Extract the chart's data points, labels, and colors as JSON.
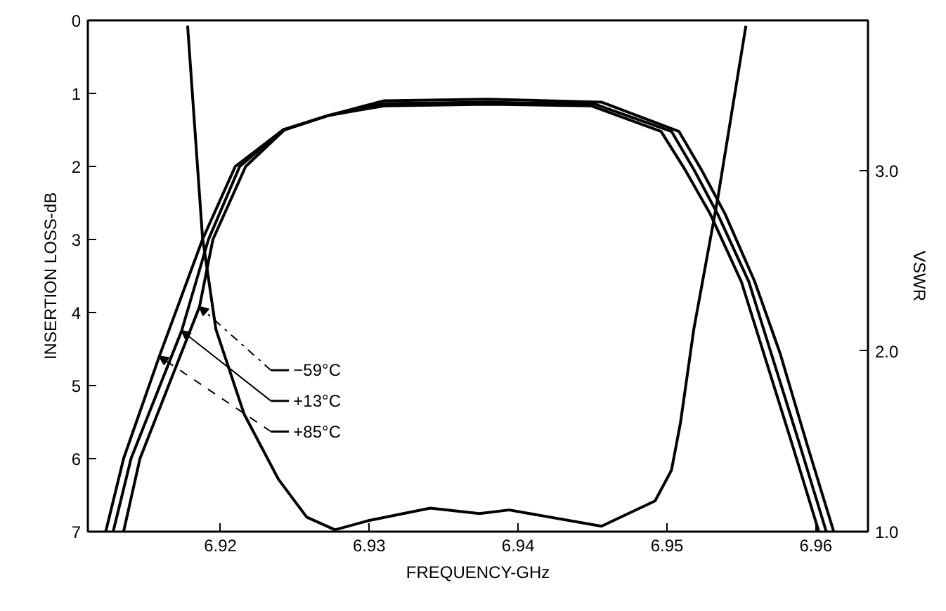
{
  "chart_data": {
    "type": "line",
    "xlabel": "FREQUENCY-GHz",
    "ylabel": "INSERTION LOSS-dB",
    "y2label": "VSWR",
    "xlim": [
      6.9111,
      6.9635
    ],
    "xticks": [
      6.92,
      6.93,
      6.94,
      6.95,
      6.96
    ],
    "ylim": [
      7,
      0
    ],
    "yticks": [
      0,
      1,
      2,
      3,
      4,
      5,
      6,
      7
    ],
    "y2lim": [
      1.0,
      3.83
    ],
    "y2ticks": [
      {
        "value": 1,
        "label": "1.0"
      },
      {
        "value": 2,
        "label": "2.0"
      },
      {
        "value": 3,
        "label": "3.0"
      }
    ],
    "grid": false,
    "legend": "left",
    "marker": "none",
    "line_style": "solid",
    "series": [
      {
        "name": "−59°C",
        "color": "#000000",
        "x": [
          6.9135,
          6.9146,
          6.9186,
          6.9195,
          6.9217,
          6.9243,
          6.9273,
          6.931,
          6.938,
          6.9456,
          6.9508,
          6.9523,
          6.9539,
          6.9559,
          6.9576,
          6.9594,
          6.9612
        ],
        "values": [
          7,
          6,
          3.92,
          3.0,
          2.0,
          1.5,
          1.3,
          1.1,
          1.08,
          1.12,
          1.52,
          2.04,
          2.65,
          3.58,
          4.56,
          5.8,
          7
        ]
      },
      {
        "name": "+13°C",
        "color": "#000000",
        "x": [
          6.9128,
          6.914,
          6.9174,
          6.9192,
          6.9213,
          6.9242,
          6.9273,
          6.931,
          6.938,
          6.9452,
          6.9503,
          6.9518,
          6.9534,
          6.9555,
          6.957,
          6.9589,
          6.9607
        ],
        "values": [
          7,
          6,
          4.25,
          3.0,
          2.0,
          1.5,
          1.3,
          1.14,
          1.12,
          1.15,
          1.52,
          2.04,
          2.65,
          3.58,
          4.56,
          5.8,
          7
        ]
      },
      {
        "name": "+85°C",
        "color": "#000000",
        "x": [
          6.9123,
          6.9135,
          6.9159,
          6.9188,
          6.921,
          6.9242,
          6.9273,
          6.931,
          6.938,
          6.9449,
          6.9496,
          6.9512,
          6.9529,
          6.955,
          6.9565,
          6.9584,
          6.9602
        ],
        "values": [
          7,
          6,
          4.6,
          3.0,
          2.0,
          1.5,
          1.3,
          1.17,
          1.15,
          1.17,
          1.52,
          2.04,
          2.65,
          3.58,
          4.56,
          5.8,
          7
        ]
      },
      {
        "color": "#000000",
        "axis": "y2",
        "x": [
          6.9178,
          6.9188,
          6.9197,
          6.9216,
          6.9239,
          6.9258,
          6.9277,
          6.9299,
          6.9341,
          6.9374,
          6.9394,
          6.9456,
          6.9492,
          6.9503,
          6.9509,
          6.9518,
          6.9534,
          6.9553
        ],
        "values": [
          3.8,
          2.63,
          2.12,
          1.65,
          1.29,
          1.08,
          1.01,
          1.06,
          1.13,
          1.1,
          1.12,
          1.03,
          1.17,
          1.34,
          1.6,
          2.12,
          2.84,
          3.8
        ]
      }
    ]
  }
}
